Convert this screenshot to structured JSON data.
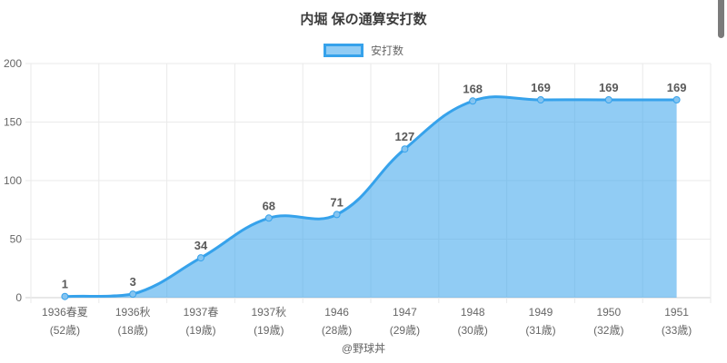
{
  "footer": "@野球丼",
  "chart_data": {
    "type": "area",
    "title": "内堀 保の通算安打数",
    "series_label": "安打数",
    "legend_position": "top",
    "categories": [
      "1936春夏",
      "1936秋",
      "1937春",
      "1937秋",
      "1946",
      "1947",
      "1948",
      "1949",
      "1950",
      "1951"
    ],
    "category_sublabels": [
      "(52歳)",
      "(18歳)",
      "(19歳)",
      "(19歳)",
      "(28歳)",
      "(29歳)",
      "(30歳)",
      "(31歳)",
      "(32歳)",
      "(33歳)"
    ],
    "values": [
      1,
      3,
      34,
      68,
      71,
      127,
      168,
      169,
      169,
      169
    ],
    "ylim": [
      0,
      200
    ],
    "yticks": [
      0,
      50,
      100,
      150,
      200
    ],
    "grid": true,
    "colors": {
      "line": "#36A2EB",
      "fill": "rgba(54,162,235,0.55)",
      "point": "#85C4F0",
      "grid": "#EAEAEA",
      "axis_line": "#D2D2D2",
      "tick_text": "#666666",
      "title_text": "#3C3C3C",
      "data_label": "#595959"
    }
  }
}
